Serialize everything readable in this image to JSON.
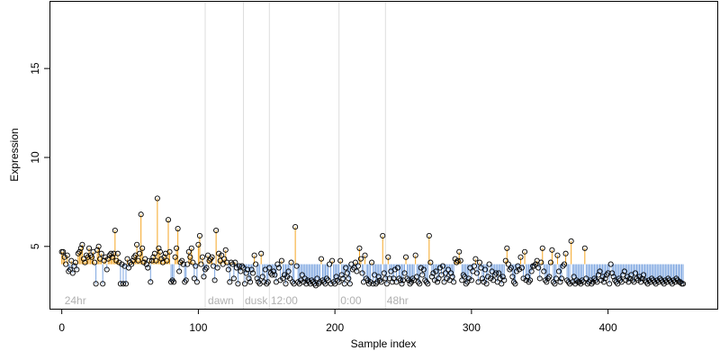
{
  "chart_data": {
    "type": "scatter",
    "xlabel": "Sample index",
    "ylabel": "Expression",
    "xlim": [
      -9,
      480
    ],
    "ylim": [
      1.5,
      18.8
    ],
    "xticks": [
      0,
      100,
      200,
      300,
      400
    ],
    "yticks": [
      5,
      10,
      15
    ],
    "baseline": 4.0,
    "grid": false,
    "colors": {
      "above": "#f5a623",
      "below": "#7ca5e0",
      "point_stroke": "#000000",
      "divider": "#dddddd",
      "phase_text": "#b0b0b0"
    },
    "phase_dividers": [
      105,
      133,
      152,
      203,
      237
    ],
    "phase_labels": [
      {
        "x": 2,
        "text": "24hr"
      },
      {
        "x": 107,
        "text": "dawn"
      },
      {
        "x": 134,
        "text": "dusk"
      },
      {
        "x": 153,
        "text": "12:00"
      },
      {
        "x": 204,
        "text": "0:00"
      },
      {
        "x": 238,
        "text": "48hr"
      }
    ],
    "y": [
      4.7,
      4.7,
      4.4,
      4.0,
      4.5,
      3.6,
      3.7,
      4.2,
      3.5,
      3.9,
      4.1,
      3.7,
      4.6,
      4.7,
      4.9,
      5.1,
      4.3,
      4.1,
      4.5,
      4.4,
      4.9,
      4.5,
      4.4,
      4.7,
      4.1,
      2.9,
      4.8,
      5.0,
      4.3,
      4.6,
      2.9,
      4.2,
      4.4,
      3.7,
      4.3,
      4.5,
      4.6,
      4.4,
      4.6,
      5.9,
      4.2,
      4.6,
      4.1,
      2.9,
      4.0,
      2.9,
      3.9,
      2.9,
      4.3,
      3.8,
      4.1,
      4.0,
      4.2,
      4.4,
      4.5,
      5.1,
      4.2,
      4.6,
      6.8,
      4.9,
      4.1,
      4.3,
      4.0,
      3.8,
      4.2,
      3.0,
      4.2,
      4.4,
      4.6,
      4.2,
      7.7,
      4.9,
      4.7,
      4.3,
      4.1,
      4.4,
      4.6,
      4.2,
      6.5,
      4.7,
      3.0,
      3.1,
      3.0,
      4.4,
      4.9,
      6.0,
      3.6,
      4.1,
      4.2,
      4.0,
      3.0,
      3.1,
      4.0,
      4.7,
      4.4,
      4.9,
      4.1,
      3.2,
      3.9,
      3.0,
      5.1,
      5.6,
      4.0,
      4.4,
      3.3,
      3.7,
      3.8,
      4.5,
      4.2,
      4.3,
      4.4,
      3.9,
      3.1,
      5.9,
      3.8,
      4.6,
      4.2,
      4.5,
      4.0,
      4.3,
      4.8,
      4.1,
      3.7,
      3.0,
      4.1,
      4.0,
      3.2,
      4.1,
      3.8,
      2.9,
      3.9,
      3.6,
      3.9,
      3.8,
      2.9,
      3.5,
      3.7,
      3.2,
      3.0,
      3.7,
      3.5,
      4.5,
      4.0,
      3.2,
      3.0,
      2.9,
      4.6,
      3.3,
      3.0,
      3.7,
      2.9,
      3.0,
      3.8,
      3.5,
      3.4,
      3.6,
      3.4,
      3.0,
      4.0,
      3.8,
      3.1,
      4.2,
      3.2,
      3.4,
      2.9,
      3.3,
      3.6,
      3.2,
      4.1,
      3.0,
      2.9,
      6.1,
      3.9,
      3.0,
      2.9,
      3.1,
      3.4,
      3.0,
      3.2,
      2.9,
      3.1,
      3.0,
      2.9,
      3.1,
      3.0,
      2.9,
      2.8,
      3.2,
      2.9,
      3.0,
      4.3,
      3.1,
      3.0,
      2.9,
      3.2,
      3.1,
      4.0,
      2.9,
      4.2,
      3.0,
      2.9,
      3.3,
      3.1,
      3.0,
      4.2,
      3.4,
      3.2,
      2.9,
      3.8,
      3.5,
      3.2,
      2.9,
      4.0,
      3.7,
      3.8,
      4.1,
      3.6,
      3.9,
      4.9,
      4.3,
      3.5,
      3.0,
      4.5,
      3.2,
      3.1,
      2.9,
      3.0,
      4.1,
      2.9,
      3.4,
      2.9,
      3.0,
      3.3,
      3.1,
      3.0,
      5.6,
      3.5,
      3.2,
      2.9,
      4.4,
      3.2,
      3.6,
      3.0,
      3.2,
      3.7,
      3.0,
      3.8,
      3.2,
      3.1,
      2.9,
      3.1,
      3.5,
      4.4,
      3.2,
      3.1,
      2.9,
      3.0,
      3.2,
      3.1,
      4.5,
      3.3,
      3.0,
      2.9,
      3.8,
      3.4,
      3.7,
      3.1,
      3.0,
      2.9,
      5.6,
      4.1,
      3.3,
      3.5,
      3.1,
      3.6,
      3.0,
      3.2,
      3.8,
      3.4,
      3.9,
      3.0,
      3.5,
      3.2,
      3.7,
      3.1,
      3.5,
      3.3,
      3.0,
      4.3,
      4.1,
      4.2,
      4.7,
      4.2,
      3.1,
      3.4,
      3.3,
      2.9,
      3.0,
      3.2,
      3.8,
      3.1,
      3.6,
      3.9,
      4.3,
      3.5,
      3.0,
      4.1,
      3.8,
      3.2,
      3.0,
      3.7,
      2.9,
      3.3,
      4.0,
      3.2,
      3.6,
      3.1,
      3.4,
      3.5,
      3.0,
      3.5,
      3.2,
      2.9,
      3.3,
      3.1,
      4.2,
      4.9,
      4.0,
      3.7,
      3.8,
      3.3,
      3.0,
      2.9,
      3.6,
      3.9,
      3.7,
      4.4,
      3.8,
      3.2,
      4.7,
      3.1,
      3.3,
      3.0,
      3.1,
      3.6,
      3.9,
      3.9,
      4.0,
      4.2,
      3.8,
      3.2,
      4.1,
      4.9,
      3.6,
      3.1,
      3.0,
      3.2,
      3.3,
      4.1,
      4.8,
      3.0,
      2.9,
      3.2,
      4.5,
      3.6,
      3.0,
      3.2,
      3.9,
      4.0,
      4.6,
      3.1,
      3.0,
      2.9,
      5.3,
      3.0,
      3.3,
      2.9,
      3.1,
      3.0,
      3.0,
      2.9,
      3.1,
      3.0,
      4.9,
      3.2,
      2.9,
      3.0,
      3.1,
      2.9,
      3.0,
      3.2,
      3.1,
      3.0,
      3.4,
      3.6,
      3.1,
      3.3,
      3.0,
      3.2,
      3.4,
      3.5,
      2.9,
      4.0,
      3.5,
      3.3,
      3.1,
      3.0,
      2.9,
      3.2,
      3.1,
      3.0,
      3.4,
      3.6,
      3.1,
      3.3,
      3.0,
      3.2,
      3.4,
      3.1,
      3.0,
      3.5,
      3.2,
      3.1,
      3.3,
      3.0,
      3.2,
      3.4,
      3.1,
      3.0,
      2.9,
      3.1,
      3.0,
      3.2,
      3.1,
      3.0,
      2.9,
      3.1,
      3.0,
      3.2,
      3.1,
      3.0,
      2.9,
      3.1,
      3.0,
      3.2,
      3.1,
      3.0,
      2.9,
      3.1,
      3.0,
      3.2,
      3.1,
      3.0,
      3.0,
      2.9,
      2.9
    ]
  }
}
